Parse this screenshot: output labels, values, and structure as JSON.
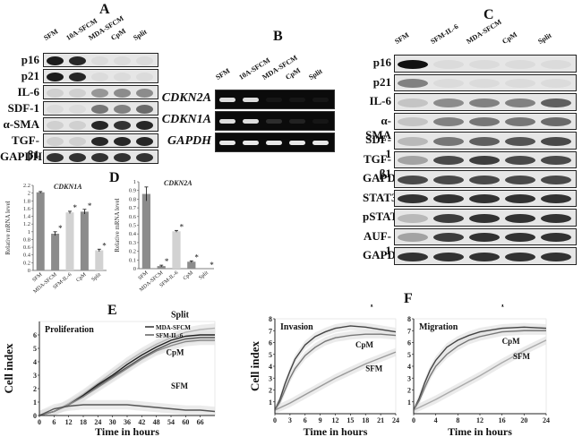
{
  "panels": {
    "A": "A",
    "B": "B",
    "C": "C",
    "D": "D",
    "E": "E",
    "F": "F"
  },
  "panel_a": {
    "columns": [
      "SFM",
      "10A-SFCM",
      "MDA-SFCM",
      "CpM",
      "Split"
    ],
    "rows": [
      {
        "label": "p16",
        "bands": [
          0.9,
          0.85,
          0.05,
          0.05,
          0.05
        ]
      },
      {
        "label": "p21",
        "bands": [
          0.9,
          0.85,
          0.05,
          0.05,
          0.05
        ]
      },
      {
        "label": "IL-6",
        "bands": [
          0.1,
          0.1,
          0.35,
          0.4,
          0.4
        ]
      },
      {
        "label": "SDF-1",
        "bands": [
          0.05,
          0.05,
          0.5,
          0.45,
          0.55
        ]
      },
      {
        "label": "α-SMA",
        "bands": [
          0.1,
          0.1,
          0.85,
          0.8,
          0.85
        ]
      },
      {
        "label": "TGF-β1",
        "bands": [
          0.1,
          0.1,
          0.85,
          0.85,
          0.85
        ]
      },
      {
        "label": "GAPDH",
        "bands": [
          0.8,
          0.8,
          0.8,
          0.8,
          0.8
        ]
      }
    ]
  },
  "panel_b": {
    "columns": [
      "SFM",
      "10A-SFCM",
      "MDA-SFCM",
      "CpM",
      "Split"
    ],
    "rows": [
      {
        "label": "CDKN2A",
        "bands": [
          0.9,
          0.9,
          0.05,
          0.05,
          0.05
        ]
      },
      {
        "label": "CDKN1A",
        "bands": [
          0.9,
          0.9,
          0.15,
          0.1,
          0.05
        ]
      },
      {
        "label": "GAPDH",
        "bands": [
          0.95,
          0.95,
          0.95,
          0.95,
          0.95
        ]
      }
    ]
  },
  "panel_c": {
    "columns": [
      "SFM",
      "SFM-IL-6",
      "MDA-SFCM",
      "CpM",
      "Split"
    ],
    "rows": [
      {
        "label": "p16",
        "bands": [
          0.95,
          0.05,
          0.05,
          0.05,
          0.05
        ]
      },
      {
        "label": "p21",
        "bands": [
          0.45,
          0.05,
          0.05,
          0.05,
          0.05
        ]
      },
      {
        "label": "IL-6",
        "bands": [
          0.15,
          0.4,
          0.45,
          0.45,
          0.6
        ]
      },
      {
        "label": "α-SMA",
        "bands": [
          0.15,
          0.45,
          0.5,
          0.5,
          0.55
        ]
      },
      {
        "label": "SDF-1",
        "bands": [
          0.2,
          0.5,
          0.6,
          0.65,
          0.7
        ]
      },
      {
        "label": "TGF-β1",
        "bands": [
          0.3,
          0.7,
          0.75,
          0.7,
          0.7
        ]
      },
      {
        "label": "GAPDH",
        "bands": [
          0.7,
          0.7,
          0.7,
          0.7,
          0.7
        ]
      },
      {
        "label": "STAT3",
        "bands": [
          0.8,
          0.8,
          0.8,
          0.8,
          0.8
        ]
      },
      {
        "label": "pSTAT3",
        "bands": [
          0.2,
          0.75,
          0.8,
          0.8,
          0.8
        ]
      },
      {
        "label": "AUF-1",
        "bands": [
          0.3,
          0.75,
          0.8,
          0.8,
          0.8
        ]
      },
      {
        "label": "GAPDH",
        "bands": [
          0.8,
          0.8,
          0.8,
          0.8,
          0.8
        ]
      }
    ]
  },
  "chart_data": [
    {
      "type": "bar",
      "panel": "D",
      "title": "CDKN1A",
      "ylabel": "Relative mRNA level",
      "categories": [
        "SFM",
        "MDA-SFCM",
        "SFM-IL-6",
        "CpM",
        "Split"
      ],
      "values": [
        2.02,
        0.95,
        1.5,
        1.52,
        0.52
      ],
      "errors": [
        0.02,
        0.05,
        0.03,
        0.06,
        0.03
      ],
      "significance": [
        "",
        "*",
        "*",
        "*",
        "*"
      ],
      "colors": [
        "#8c8c8c",
        "#8c8c8c",
        "#d2d2d2",
        "#8c8c8c",
        "#d2d2d2"
      ],
      "ylim": [
        0,
        2.2
      ],
      "yticks": [
        0,
        0.2,
        0.4,
        0.6,
        0.8,
        1,
        1.2,
        1.4,
        1.6,
        1.8,
        2,
        2.2
      ],
      "ytick_labels": [
        "0",
        "0.2",
        "0.4",
        "0.6",
        "0.8",
        "1",
        "1.2",
        "1.4",
        "1.6",
        "1.8",
        "2",
        "2.2"
      ]
    },
    {
      "type": "bar",
      "panel": "D",
      "title": "CDKN2A",
      "ylabel": "Relative mRNA level",
      "categories": [
        "SFM",
        "MDA-SFCM",
        "SFM-IL-6",
        "CpM",
        "Split"
      ],
      "values": [
        0.86,
        0.03,
        0.43,
        0.08,
        0.0
      ],
      "errors": [
        0.08,
        0.01,
        0.01,
        0.01,
        0.0
      ],
      "significance": [
        "",
        "*",
        "*",
        "*",
        "*"
      ],
      "colors": [
        "#8c8c8c",
        "#8c8c8c",
        "#d2d2d2",
        "#8c8c8c",
        "#d2d2d2"
      ],
      "ylim": [
        0,
        1
      ],
      "yticks": [
        0,
        0.1,
        0.2,
        0.3,
        0.4,
        0.5,
        0.6,
        0.7,
        0.8,
        0.9,
        1
      ],
      "ytick_labels": [
        "0",
        "0.1",
        "0.2",
        "0.3",
        "0.4",
        "0.5",
        "0.6",
        "0.7",
        "0.8",
        "0.9",
        "1"
      ]
    },
    {
      "type": "line",
      "panel": "E",
      "title": "Proliferation",
      "xlabel": "Time in hours",
      "ylabel": "Cell index",
      "xlim": [
        0,
        72
      ],
      "ylim": [
        0,
        7
      ],
      "xticks": [
        0,
        6,
        12,
        18,
        24,
        30,
        36,
        42,
        48,
        54,
        60,
        66
      ],
      "xtick_labels": [
        "0",
        "6",
        "12",
        "18",
        "24",
        "30",
        "36",
        "42",
        "48",
        "54",
        "60",
        "66"
      ],
      "yticks": [
        0,
        1,
        2,
        3,
        4,
        5,
        6
      ],
      "ytick_labels": [
        "0",
        "1",
        "2",
        "3",
        "4",
        "5",
        "6"
      ],
      "legend": [
        "MDA-SFCM",
        "SFM-IL-6"
      ],
      "curve_labels": [
        "Split",
        "CpM",
        "SFM"
      ],
      "series": [
        {
          "name": "Split",
          "x": [
            0,
            6,
            12,
            18,
            24,
            30,
            36,
            42,
            48,
            54,
            60,
            66,
            72
          ],
          "y": [
            0,
            0.3,
            0.9,
            1.6,
            2.4,
            3.2,
            4.0,
            4.7,
            5.3,
            5.8,
            6.2,
            6.4,
            6.5
          ],
          "color": "#b5b5b5"
        },
        {
          "name": "MDA-SFCM",
          "x": [
            0,
            6,
            12,
            18,
            24,
            30,
            36,
            42,
            48,
            54,
            60,
            66,
            72
          ],
          "y": [
            0,
            0.3,
            0.8,
            1.5,
            2.3,
            3.0,
            3.8,
            4.5,
            5.1,
            5.6,
            5.9,
            6.0,
            6.0
          ],
          "color": "#222222"
        },
        {
          "name": "SFM-IL-6",
          "x": [
            0,
            6,
            12,
            18,
            24,
            30,
            36,
            42,
            48,
            54,
            60,
            66,
            72
          ],
          "y": [
            0,
            0.3,
            0.8,
            1.4,
            2.2,
            2.9,
            3.6,
            4.3,
            4.9,
            5.4,
            5.7,
            5.8,
            5.8
          ],
          "color": "#555555"
        },
        {
          "name": "CpM",
          "x": [
            0,
            6,
            12,
            18,
            24,
            30,
            36,
            42,
            48,
            54,
            60,
            66,
            72
          ],
          "y": [
            0,
            0.3,
            0.8,
            1.4,
            2.1,
            2.8,
            3.5,
            4.2,
            4.8,
            5.2,
            5.5,
            5.6,
            5.6
          ],
          "color": "#888888"
        },
        {
          "name": "SFM",
          "x": [
            0,
            6,
            12,
            18,
            24,
            30,
            36,
            42,
            48,
            54,
            60,
            66,
            72
          ],
          "y": [
            0,
            0.5,
            0.7,
            0.8,
            0.8,
            0.8,
            0.8,
            0.7,
            0.6,
            0.5,
            0.4,
            0.4,
            0.3
          ],
          "color": "#555555"
        }
      ]
    },
    {
      "type": "line",
      "panel": "F",
      "title": "Invasion",
      "xlabel": "Time in hours",
      "ylabel": "Cell index",
      "xlim": [
        0,
        24
      ],
      "ylim": [
        0,
        8
      ],
      "xticks": [
        0,
        3,
        6,
        9,
        12,
        15,
        18,
        21,
        24
      ],
      "xtick_labels": [
        "0",
        "3",
        "6",
        "9",
        "12",
        "15",
        "18",
        "21",
        "24"
      ],
      "yticks": [
        1,
        2,
        3,
        4,
        5,
        6,
        7,
        8
      ],
      "ytick_labels": [
        "1",
        "2",
        "3",
        "4",
        "5",
        "6",
        "7",
        "8"
      ],
      "curve_labels": [
        "Split",
        "CpM",
        "SFM"
      ],
      "series": [
        {
          "name": "Split",
          "x": [
            0,
            1,
            2,
            3,
            4,
            6,
            8,
            10,
            12,
            15,
            18,
            21,
            24
          ],
          "y": [
            0.3,
            1.2,
            2.5,
            3.6,
            4.6,
            5.8,
            6.5,
            6.9,
            7.2,
            7.4,
            7.3,
            7.1,
            6.9
          ],
          "color": "#444444"
        },
        {
          "name": "CpM",
          "x": [
            0,
            1,
            2,
            3,
            4,
            6,
            8,
            10,
            12,
            15,
            18,
            21,
            24
          ],
          "y": [
            0.3,
            1.0,
            2.0,
            3.0,
            3.8,
            4.9,
            5.6,
            6.1,
            6.4,
            6.6,
            6.7,
            6.7,
            6.6
          ],
          "color": "#777777"
        },
        {
          "name": "SFM",
          "x": [
            0,
            3,
            6,
            9,
            12,
            15,
            18,
            21,
            24
          ],
          "y": [
            0.3,
            0.9,
            1.6,
            2.3,
            3.0,
            3.6,
            4.2,
            4.7,
            5.2
          ],
          "color": "#999999"
        }
      ]
    },
    {
      "type": "line",
      "panel": "F",
      "title": "Migration",
      "xlabel": "Time in hours",
      "ylabel": "",
      "xlim": [
        0,
        24
      ],
      "ylim": [
        0,
        8
      ],
      "xticks": [
        0,
        4,
        8,
        12,
        16,
        20,
        24
      ],
      "xtick_labels": [
        "0",
        "4",
        "8",
        "12",
        "16",
        "20",
        "24"
      ],
      "yticks": [
        1,
        2,
        3,
        4,
        5,
        6,
        7,
        8
      ],
      "ytick_labels": [
        "1",
        "2",
        "3",
        "4",
        "5",
        "6",
        "7",
        "8"
      ],
      "curve_labels": [
        "Split",
        "CpM",
        "SFM"
      ],
      "series": [
        {
          "name": "Split",
          "x": [
            0,
            1,
            2,
            3,
            4,
            6,
            8,
            10,
            12,
            16,
            20,
            24
          ],
          "y": [
            0.3,
            1.3,
            2.6,
            3.7,
            4.5,
            5.6,
            6.2,
            6.6,
            6.9,
            7.2,
            7.3,
            7.2
          ],
          "color": "#444444"
        },
        {
          "name": "CpM",
          "x": [
            0,
            1,
            2,
            3,
            4,
            6,
            8,
            10,
            12,
            16,
            20,
            24
          ],
          "y": [
            0.3,
            1.1,
            2.2,
            3.2,
            4.0,
            5.0,
            5.7,
            6.2,
            6.5,
            6.9,
            7.0,
            7.0
          ],
          "color": "#777777"
        },
        {
          "name": "SFM",
          "x": [
            0,
            4,
            8,
            12,
            16,
            20,
            24
          ],
          "y": [
            0.3,
            1.2,
            2.2,
            3.2,
            4.3,
            5.3,
            6.2
          ],
          "color": "#aaaaaa"
        }
      ]
    }
  ]
}
